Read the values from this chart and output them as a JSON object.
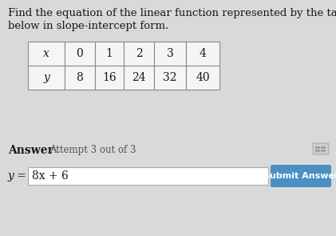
{
  "title_line1": "Find the equation of the linear function represented by the table",
  "title_line2": "below in slope-intercept form.",
  "table_x_header": "x",
  "table_y_header": "y",
  "table_x_values": [
    "0",
    "1",
    "2",
    "3",
    "4"
  ],
  "table_y_values": [
    "8",
    "16",
    "24",
    "32",
    "40"
  ],
  "answer_label": "Answer",
  "attempt_text": "Attempt 3 out of 3",
  "equation_prefix": "y =",
  "equation_value": "8x + 6",
  "submit_button_text": "Submit Answer",
  "submit_button_color": "#4a90c4",
  "bg_color": "#d9d9d9",
  "text_color": "#1a1a1a",
  "table_bg": "#f5f5f5",
  "input_bg": "#ffffff",
  "title_fontsize": 9.5,
  "answer_fontsize": 10,
  "attempt_fontsize": 8.5,
  "table_fontsize": 10,
  "button_fontsize": 8
}
